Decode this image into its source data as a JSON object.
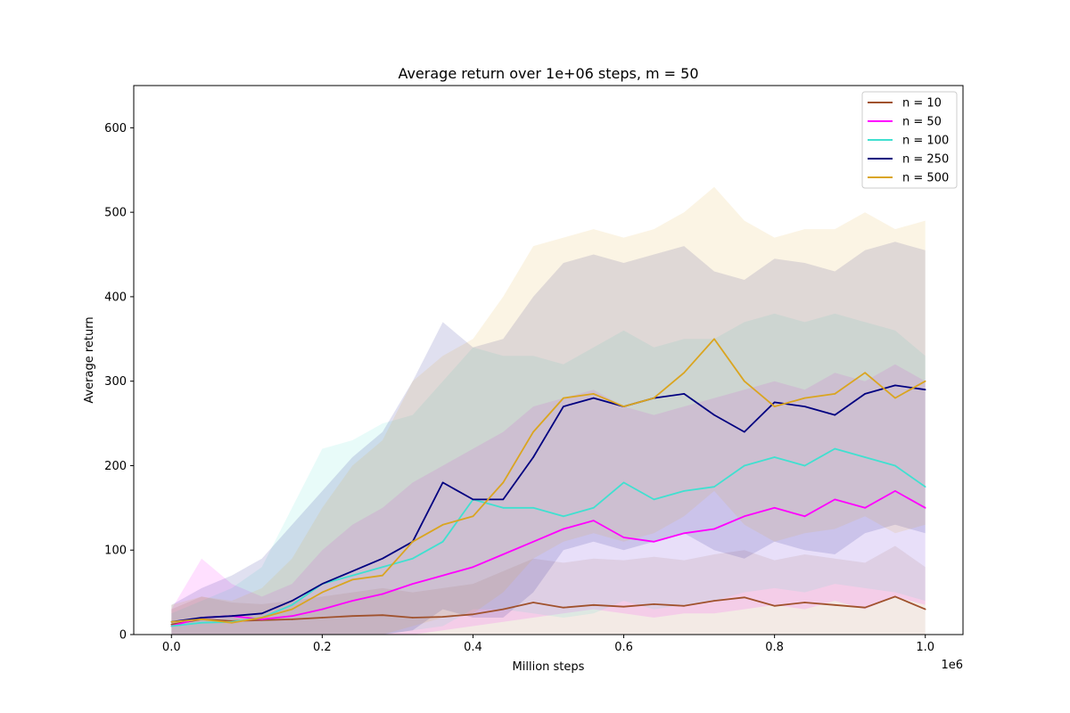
{
  "chart_data": {
    "type": "line",
    "title": "Average return over 1e+06 steps, m = 50",
    "xlabel": "Million steps",
    "ylabel": "Average return",
    "x_offset_label": "1e6",
    "xlim": [
      -50000,
      1050000
    ],
    "ylim": [
      0,
      650
    ],
    "xticks": [
      0,
      200000,
      400000,
      600000,
      800000,
      1000000
    ],
    "xtick_labels": [
      "0.0",
      "0.2",
      "0.4",
      "0.6",
      "0.8",
      "1.0"
    ],
    "yticks": [
      0,
      100,
      200,
      300,
      400,
      500,
      600
    ],
    "ytick_labels": [
      "0",
      "100",
      "200",
      "300",
      "400",
      "500",
      "600"
    ],
    "grid": false,
    "legend_position": "top-right",
    "shaded_band": "variability band around each mean curve",
    "x": [
      0,
      40000,
      80000,
      120000,
      160000,
      200000,
      240000,
      280000,
      320000,
      360000,
      400000,
      440000,
      480000,
      520000,
      560000,
      600000,
      640000,
      680000,
      720000,
      760000,
      800000,
      840000,
      880000,
      920000,
      960000,
      1000000
    ],
    "series": [
      {
        "name": "n = 10",
        "color": "#a0522d",
        "values": [
          12,
          18,
          16,
          17,
          18,
          20,
          22,
          23,
          20,
          21,
          24,
          30,
          38,
          32,
          35,
          33,
          36,
          34,
          40,
          44,
          34,
          38,
          35,
          32,
          45,
          30
        ],
        "lower": [
          0,
          0,
          0,
          0,
          0,
          0,
          0,
          0,
          0,
          0,
          0,
          0,
          0,
          0,
          0,
          0,
          0,
          0,
          0,
          0,
          0,
          0,
          0,
          0,
          0,
          0
        ],
        "upper": [
          30,
          45,
          38,
          36,
          40,
          45,
          50,
          55,
          50,
          55,
          60,
          75,
          90,
          85,
          90,
          88,
          92,
          88,
          95,
          100,
          88,
          95,
          90,
          85,
          105,
          80
        ]
      },
      {
        "name": "n = 50",
        "color": "#ff00ff",
        "values": [
          10,
          20,
          22,
          18,
          22,
          30,
          40,
          48,
          60,
          70,
          80,
          95,
          110,
          125,
          135,
          115,
          110,
          120,
          125,
          140,
          150,
          140,
          160,
          150,
          170,
          150
        ],
        "lower": [
          0,
          0,
          0,
          0,
          0,
          0,
          0,
          0,
          0,
          5,
          10,
          15,
          20,
          25,
          30,
          25,
          20,
          25,
          25,
          30,
          35,
          30,
          40,
          30,
          45,
          35
        ],
        "upper": [
          30,
          90,
          60,
          45,
          60,
          100,
          130,
          150,
          180,
          200,
          220,
          240,
          270,
          280,
          290,
          270,
          260,
          270,
          280,
          290,
          300,
          290,
          310,
          300,
          320,
          300
        ]
      },
      {
        "name": "n = 100",
        "color": "#40e0d0",
        "values": [
          10,
          14,
          15,
          20,
          35,
          60,
          70,
          80,
          90,
          110,
          160,
          150,
          150,
          140,
          150,
          180,
          160,
          170,
          175,
          200,
          210,
          200,
          220,
          210,
          200,
          175
        ],
        "lower": [
          0,
          0,
          0,
          0,
          0,
          0,
          0,
          0,
          5,
          10,
          30,
          30,
          25,
          20,
          25,
          40,
          30,
          35,
          40,
          50,
          55,
          50,
          60,
          55,
          50,
          40
        ],
        "upper": [
          25,
          40,
          55,
          80,
          150,
          220,
          230,
          250,
          260,
          300,
          340,
          330,
          330,
          320,
          340,
          360,
          340,
          350,
          350,
          370,
          380,
          370,
          380,
          370,
          360,
          330
        ]
      },
      {
        "name": "n = 250",
        "color": "#000080",
        "values": [
          15,
          20,
          22,
          25,
          40,
          60,
          75,
          90,
          110,
          180,
          160,
          160,
          210,
          270,
          280,
          270,
          280,
          285,
          260,
          240,
          275,
          270,
          260,
          285,
          295,
          290
        ],
        "lower": [
          0,
          0,
          0,
          0,
          0,
          0,
          0,
          0,
          5,
          30,
          20,
          20,
          50,
          100,
          110,
          100,
          110,
          120,
          100,
          90,
          110,
          100,
          95,
          120,
          130,
          120
        ],
        "upper": [
          35,
          55,
          70,
          90,
          130,
          170,
          210,
          240,
          300,
          370,
          340,
          350,
          400,
          440,
          450,
          440,
          450,
          460,
          430,
          420,
          445,
          440,
          430,
          455,
          465,
          455
        ]
      },
      {
        "name": "n = 500",
        "color": "#daa520",
        "values": [
          15,
          18,
          14,
          20,
          30,
          50,
          65,
          70,
          110,
          130,
          140,
          180,
          240,
          280,
          285,
          270,
          280,
          310,
          350,
          300,
          270,
          280,
          285,
          310,
          280,
          300
        ],
        "lower": [
          0,
          0,
          0,
          0,
          0,
          0,
          0,
          0,
          10,
          20,
          25,
          50,
          90,
          110,
          120,
          110,
          120,
          140,
          170,
          130,
          110,
          120,
          125,
          140,
          120,
          130
        ],
        "upper": [
          35,
          45,
          40,
          55,
          90,
          150,
          200,
          230,
          300,
          330,
          350,
          400,
          460,
          470,
          480,
          470,
          480,
          500,
          530,
          490,
          470,
          480,
          480,
          500,
          480,
          490
        ]
      }
    ]
  }
}
